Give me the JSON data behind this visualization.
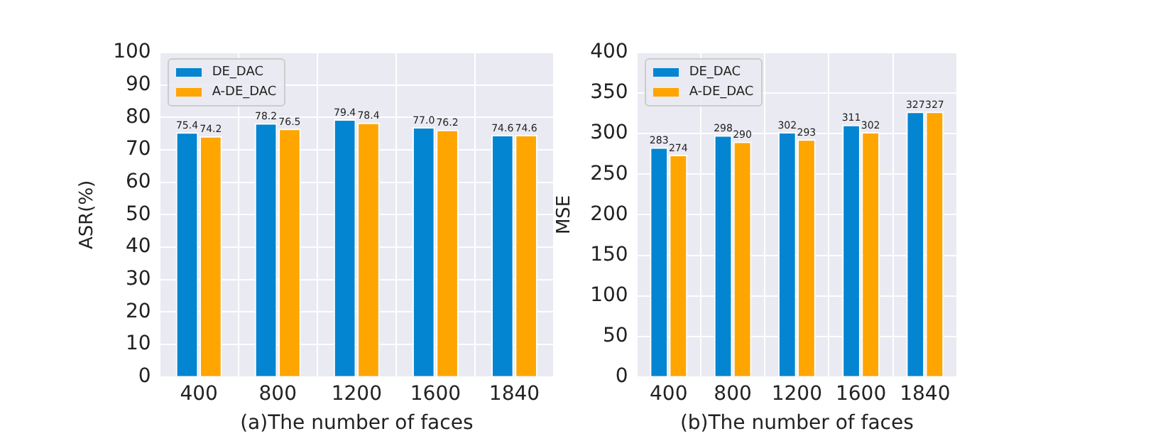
{
  "chart_data": [
    {
      "type": "bar",
      "xlabel": "(a)The number of faces",
      "ylabel": "ASR(%)",
      "categories": [
        "400",
        "800",
        "1200",
        "1600",
        "1840"
      ],
      "series": [
        {
          "name": "DE_DAC",
          "color": "#0485d1",
          "values": [
            75.4,
            78.2,
            79.4,
            77.0,
            74.6
          ],
          "value_labels": [
            "75.4",
            "78.2",
            "79.4",
            "77.0",
            "74.6"
          ]
        },
        {
          "name": "A-DE_DAC",
          "color": "#ffa500",
          "values": [
            74.2,
            76.5,
            78.4,
            76.2,
            74.6
          ],
          "value_labels": [
            "74.2",
            "76.5",
            "78.4",
            "76.2",
            "74.6"
          ]
        }
      ],
      "ylim": [
        0,
        100
      ],
      "yticks": [
        0,
        10,
        20,
        30,
        40,
        50,
        60,
        70,
        80,
        90,
        100
      ],
      "grid": true,
      "legend": "top left"
    },
    {
      "type": "bar",
      "xlabel": "(b)The number of faces",
      "ylabel": "MSE",
      "categories": [
        "400",
        "800",
        "1200",
        "1600",
        "1840"
      ],
      "series": [
        {
          "name": "DE_DAC",
          "color": "#0485d1",
          "values": [
            283,
            298,
            302,
            311,
            327
          ],
          "value_labels": [
            "283",
            "298",
            "302",
            "311",
            "327"
          ]
        },
        {
          "name": "A-DE_DAC",
          "color": "#ffa500",
          "values": [
            274,
            290,
            293,
            302,
            327
          ],
          "value_labels": [
            "274",
            "290",
            "293",
            "302",
            "327"
          ]
        }
      ],
      "ylim": [
        0,
        400
      ],
      "yticks": [
        0,
        50,
        100,
        150,
        200,
        250,
        300,
        350,
        400
      ],
      "grid": true,
      "legend": "top left"
    }
  ]
}
